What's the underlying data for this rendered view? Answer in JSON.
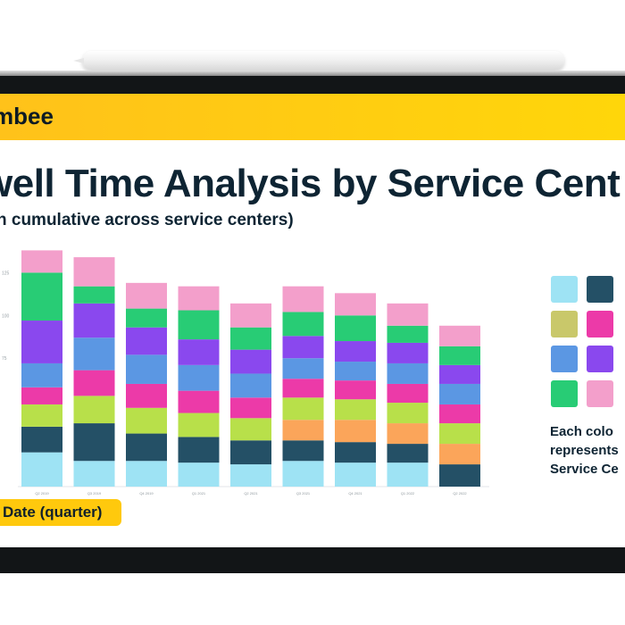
{
  "brand": {
    "name": "mbee"
  },
  "title": "well Time Analysis by Service Cent",
  "subtitle": "n cumulative across service centers)",
  "x_axis_pill": "Date (quarter)",
  "legend_note": [
    "Each colo",
    "represents",
    "Service Ce"
  ],
  "legend_colors": [
    "#9ee3f4",
    "#245066",
    "#c9c86a",
    "#ec3aa8",
    "#5b97e3",
    "#8a48ee",
    "#28cc75",
    "#f39fcb"
  ],
  "series_colors": [
    "#9ee3f4",
    "#245066",
    "#fba55a",
    "#b8e04a",
    "#ec3aa8",
    "#5b97e3",
    "#8a48ee",
    "#28cc75",
    "#f39fcb"
  ],
  "chart_data": {
    "type": "bar",
    "stacked": true,
    "categories": [
      "Q2 2019",
      "Q3 2019",
      "Q4 2019",
      "Q1 2021",
      "Q2 2021",
      "Q3 2021",
      "Q4 2021",
      "Q1 2022",
      "Q2 2022"
    ],
    "y_ticks": [
      "125",
      "100",
      "75"
    ],
    "ylim": [
      0,
      133
    ],
    "series": [
      {
        "values": [
          20,
          15,
          15,
          14,
          13,
          15,
          14,
          14,
          0
        ]
      },
      {
        "values": [
          15,
          22,
          16,
          15,
          14,
          12,
          12,
          11,
          13
        ]
      },
      {
        "values": [
          0,
          0,
          0,
          0,
          0,
          12,
          13,
          12,
          12
        ]
      },
      {
        "values": [
          13,
          16,
          15,
          14,
          13,
          13,
          12,
          12,
          12
        ]
      },
      {
        "values": [
          10,
          15,
          14,
          13,
          12,
          11,
          11,
          11,
          11
        ]
      },
      {
        "values": [
          14,
          19,
          17,
          15,
          14,
          12,
          11,
          12,
          12
        ]
      },
      {
        "values": [
          25,
          20,
          16,
          15,
          14,
          13,
          12,
          12,
          11
        ]
      },
      {
        "values": [
          28,
          10,
          11,
          17,
          13,
          14,
          15,
          10,
          11
        ]
      },
      {
        "values": [
          13,
          17,
          15,
          14,
          14,
          15,
          13,
          13,
          12
        ]
      }
    ]
  }
}
